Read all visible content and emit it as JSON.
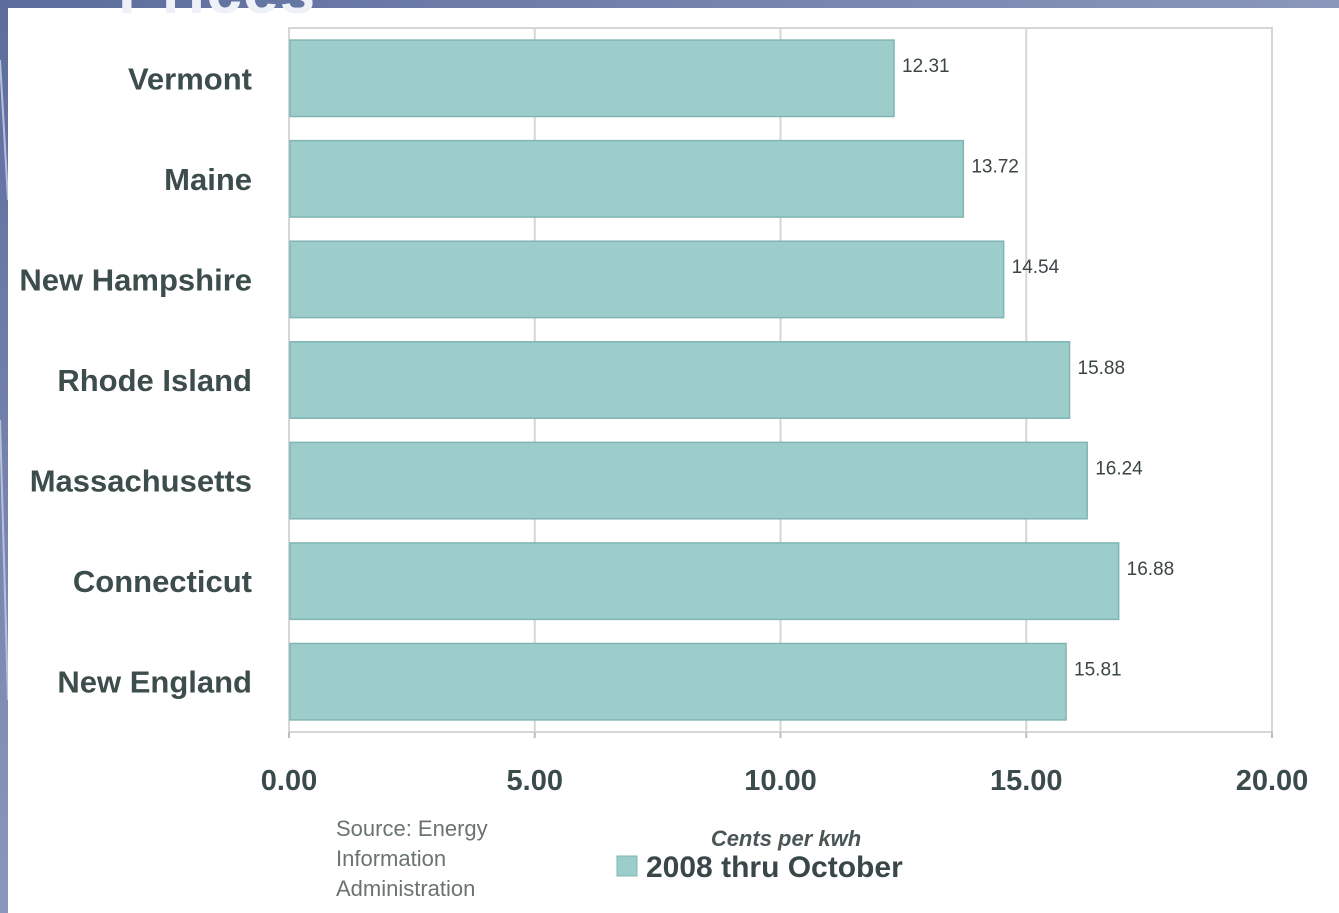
{
  "slide": {
    "heading": "Prices"
  },
  "chart_data": {
    "type": "bar",
    "orientation": "horizontal",
    "categories": [
      "Vermont",
      "Maine",
      "New Hampshire",
      "Rhode Island",
      "Massachusetts",
      "Connecticut",
      "New England"
    ],
    "series": [
      {
        "name": "2008 thru October",
        "values": [
          12.31,
          13.72,
          14.54,
          15.88,
          16.24,
          16.88,
          15.81
        ]
      }
    ],
    "value_labels": [
      "12.31",
      "13.72",
      "14.54",
      "15.88",
      "16.24",
      "16.88",
      "15.81"
    ],
    "xlabel": "Cents per kwh",
    "xlim": [
      0,
      20
    ],
    "xticks": [
      "0.00",
      "5.00",
      "10.00",
      "15.00",
      "20.00"
    ],
    "xtick_values": [
      0,
      5,
      10,
      15,
      20
    ],
    "grid": true,
    "legend": {
      "position": "bottom-center",
      "entries": [
        "2008 thru October"
      ]
    },
    "source_lines": [
      "Source:  Energy",
      "Information",
      "Administration"
    ],
    "colors": {
      "bar": "#9dcdcb",
      "bar_edge": "#7fb6b3",
      "grid": "#d6d6d6"
    }
  }
}
